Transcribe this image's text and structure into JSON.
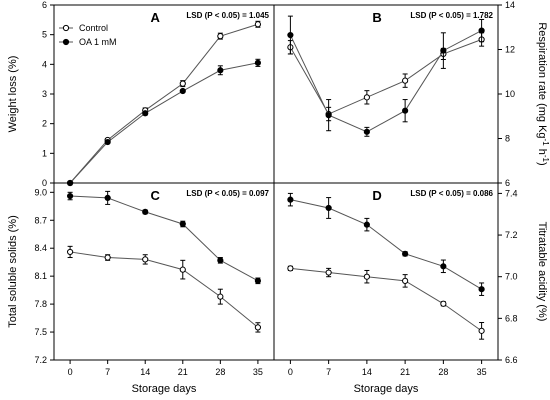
{
  "x_axis_title": "Storage days",
  "chart_data": [
    {
      "type": "line",
      "panel": "A",
      "annotation": "LSD (P < 0.05) = 1.045",
      "ylabel": "Weight loss (%)",
      "x": [
        0,
        7,
        14,
        21,
        28,
        35
      ],
      "xlim": [
        -3,
        38
      ],
      "ylim": [
        0,
        6
      ],
      "yticks": [
        0,
        1,
        2,
        3,
        4,
        5,
        6
      ],
      "ytick_labels": [
        "0",
        "1",
        "2",
        "3",
        "4",
        "5",
        "6"
      ],
      "series": [
        {
          "name": "Control",
          "marker": "open",
          "values": [
            0,
            1.45,
            2.45,
            3.35,
            4.95,
            5.35
          ],
          "errors": [
            0,
            0.05,
            0.08,
            0.1,
            0.1,
            0.1
          ]
        },
        {
          "name": "OA 1 mM",
          "marker": "filled",
          "values": [
            0,
            1.38,
            2.35,
            3.1,
            3.8,
            4.05
          ],
          "errors": [
            0,
            0.05,
            0.06,
            0.05,
            0.15,
            0.12
          ]
        }
      ]
    },
    {
      "type": "line",
      "panel": "B",
      "annotation": "LSD (P < 0.05) = 1.782",
      "ylabel": "Respiration rate (mg Kg-1 h-1)",
      "x": [
        0,
        7,
        14,
        21,
        28,
        35
      ],
      "xlim": [
        -3,
        38
      ],
      "ylim": [
        6,
        14
      ],
      "yticks": [
        6,
        8,
        10,
        12,
        14
      ],
      "ytick_labels": [
        "6",
        "8",
        "10",
        "12",
        "14"
      ],
      "series": [
        {
          "name": "Control",
          "marker": "open",
          "values": [
            12.1,
            9.1,
            9.85,
            10.6,
            11.8,
            12.45
          ],
          "errors": [
            0.3,
            0.3,
            0.3,
            0.3,
            0.25,
            0.3
          ]
        },
        {
          "name": "OA 1 mM",
          "marker": "filled",
          "values": [
            12.65,
            9.05,
            8.3,
            9.25,
            11.95,
            12.85
          ],
          "errors": [
            0.85,
            0.7,
            0.2,
            0.5,
            0.8,
            0.5
          ]
        }
      ]
    },
    {
      "type": "line",
      "panel": "C",
      "annotation": "LSD (P < 0.05) = 0.097",
      "ylabel": "Total soluble solids (%)",
      "x": [
        0,
        7,
        14,
        21,
        28,
        35
      ],
      "xlim": [
        -3,
        38
      ],
      "ylim": [
        7.2,
        9.1
      ],
      "yticks": [
        7.2,
        7.5,
        7.8,
        8.1,
        8.4,
        8.7,
        9.0
      ],
      "ytick_labels": [
        "7.2",
        "7.5",
        "7.8",
        "8.1",
        "8.4",
        "8.7",
        "9.0"
      ],
      "series": [
        {
          "name": "Control",
          "marker": "open",
          "values": [
            8.36,
            8.3,
            8.28,
            8.17,
            7.88,
            7.55
          ],
          "errors": [
            0.06,
            0.03,
            0.05,
            0.1,
            0.08,
            0.05
          ]
        },
        {
          "name": "OA 1 mM",
          "marker": "filled",
          "values": [
            8.96,
            8.94,
            8.79,
            8.66,
            8.27,
            8.05
          ],
          "errors": [
            0.04,
            0.07,
            0.02,
            0.03,
            0.03,
            0.03
          ]
        }
      ]
    },
    {
      "type": "line",
      "panel": "D",
      "annotation": "LSD (P < 0.05) = 0.086",
      "ylabel": "Titratable acidity (%)",
      "x": [
        0,
        7,
        14,
        21,
        28,
        35
      ],
      "xlim": [
        -3,
        38
      ],
      "ylim": [
        6.6,
        7.45
      ],
      "yticks": [
        6.6,
        6.8,
        7.0,
        7.2,
        7.4
      ],
      "ytick_labels": [
        "6.6",
        "6.8",
        "7.0",
        "7.2",
        "7.4"
      ],
      "series": [
        {
          "name": "Control",
          "marker": "open",
          "values": [
            7.04,
            7.02,
            7.0,
            6.98,
            6.87,
            6.74
          ],
          "errors": [
            0.01,
            0.02,
            0.03,
            0.03,
            0.01,
            0.04
          ]
        },
        {
          "name": "OA 1 mM",
          "marker": "filled",
          "values": [
            7.37,
            7.33,
            7.25,
            7.11,
            7.05,
            6.94
          ],
          "errors": [
            0.03,
            0.05,
            0.03,
            0.01,
            0.03,
            0.03
          ]
        }
      ]
    }
  ]
}
